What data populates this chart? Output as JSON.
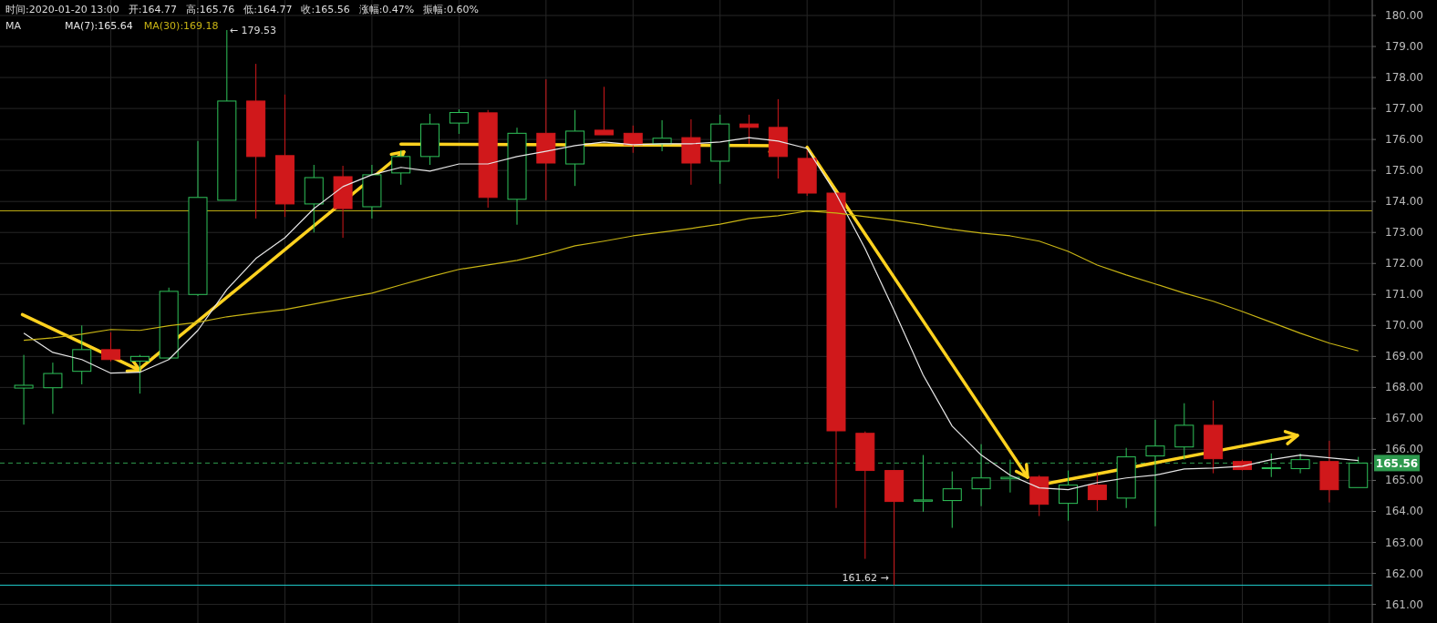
{
  "chart_data": {
    "type": "candlestick",
    "categories": [
      null,
      null,
      null,
      null,
      null,
      null,
      null,
      null,
      null,
      null,
      null,
      null,
      null,
      null,
      null,
      null,
      null,
      null,
      null,
      null,
      null,
      null,
      null,
      null,
      null,
      null,
      null,
      null,
      null,
      null,
      null,
      null,
      null,
      null,
      null,
      null,
      null,
      null,
      null,
      null,
      null,
      null,
      null,
      null,
      null,
      null,
      null
    ],
    "ohlc": [
      [
        167.98,
        169.05,
        166.8,
        168.07
      ],
      [
        167.99,
        168.8,
        167.15,
        168.45
      ],
      [
        168.52,
        170.0,
        168.1,
        169.22
      ],
      [
        169.22,
        169.78,
        168.84,
        168.9
      ],
      [
        168.85,
        169.05,
        167.8,
        169.0
      ],
      [
        168.95,
        171.22,
        168.9,
        171.1
      ],
      [
        171.0,
        175.95,
        170.95,
        174.13
      ],
      [
        174.04,
        179.53,
        174.04,
        177.24
      ],
      [
        177.24,
        178.44,
        173.45,
        175.45
      ],
      [
        175.48,
        177.45,
        173.5,
        173.92
      ],
      [
        173.92,
        175.18,
        173.0,
        174.77
      ],
      [
        174.8,
        175.15,
        172.83,
        173.77
      ],
      [
        173.83,
        175.18,
        173.45,
        174.86
      ],
      [
        174.92,
        175.65,
        174.54,
        175.45
      ],
      [
        175.45,
        176.83,
        175.18,
        176.5
      ],
      [
        176.53,
        176.97,
        176.18,
        176.87
      ],
      [
        176.86,
        176.95,
        173.8,
        174.13
      ],
      [
        174.07,
        176.38,
        173.25,
        176.2
      ],
      [
        176.2,
        177.94,
        174.04,
        175.24
      ],
      [
        175.21,
        176.95,
        174.5,
        176.27
      ],
      [
        176.3,
        177.7,
        176.15,
        176.15
      ],
      [
        176.2,
        176.45,
        175.57,
        175.83
      ],
      [
        175.86,
        176.62,
        175.62,
        176.04
      ],
      [
        176.06,
        176.65,
        174.54,
        175.24
      ],
      [
        175.3,
        176.8,
        174.57,
        176.5
      ],
      [
        176.5,
        176.8,
        175.86,
        176.39
      ],
      [
        176.39,
        177.3,
        174.74,
        175.45
      ],
      [
        175.39,
        175.65,
        174.18,
        174.27
      ],
      [
        174.27,
        174.27,
        164.11,
        166.6
      ],
      [
        166.52,
        166.58,
        162.47,
        165.32
      ],
      [
        165.32,
        165.32,
        161.62,
        164.32
      ],
      [
        164.33,
        165.82,
        163.99,
        164.37
      ],
      [
        164.35,
        165.29,
        163.47,
        164.73
      ],
      [
        164.73,
        166.17,
        164.17,
        165.08
      ],
      [
        165.05,
        165.67,
        164.61,
        165.1
      ],
      [
        165.11,
        165.17,
        163.85,
        164.23
      ],
      [
        164.26,
        165.32,
        163.7,
        164.85
      ],
      [
        164.85,
        165.23,
        164.02,
        164.38
      ],
      [
        164.43,
        166.05,
        164.11,
        165.76
      ],
      [
        165.79,
        166.96,
        163.52,
        166.11
      ],
      [
        166.08,
        167.49,
        165.67,
        166.78
      ],
      [
        166.78,
        167.58,
        165.23,
        165.7
      ],
      [
        165.61,
        165.67,
        165.32,
        165.35
      ],
      [
        165.38,
        165.87,
        165.11,
        165.41
      ],
      [
        165.38,
        165.87,
        165.23,
        165.67
      ],
      [
        165.61,
        166.28,
        164.29,
        164.7
      ],
      [
        164.77,
        165.76,
        164.77,
        165.56
      ]
    ],
    "colors": [
      "#2fc35a",
      "#2fc35a",
      "#2fc35a",
      "#d0181b",
      "#2fc35a",
      "#2fc35a",
      "#2fc35a",
      "#2fc35a",
      "#d0181b",
      "#d0181b",
      "#2fc35a",
      "#d0181b",
      "#2fc35a",
      "#2fc35a",
      "#2fc35a",
      "#2fc35a",
      "#d0181b",
      "#2fc35a",
      "#d0181b",
      "#2fc35a",
      "#d0181b",
      "#d0181b",
      "#2fc35a",
      "#d0181b",
      "#2fc35a",
      "#d0181b",
      "#d0181b",
      "#d0181b",
      "#d0181b",
      "#d0181b",
      "#d0181b",
      "#2fc35a",
      "#2fc35a",
      "#2fc35a",
      "#2fc35a",
      "#d0181b",
      "#2fc35a",
      "#d0181b",
      "#2fc35a",
      "#2fc35a",
      "#2fc35a",
      "#d0181b",
      "#d0181b",
      "#2fc35a",
      "#2fc35a",
      "#d0181b",
      "#2fc35a"
    ],
    "series": [
      {
        "type": "line",
        "name": "MA(7):165.64",
        "color": "#e6e6e6",
        "values": [
          169.75,
          169.13,
          168.9,
          168.46,
          168.49,
          168.9,
          169.84,
          171.16,
          172.16,
          172.83,
          173.77,
          174.48,
          174.86,
          175.1,
          174.98,
          175.21,
          175.21,
          175.45,
          175.62,
          175.8,
          175.92,
          175.83,
          175.86,
          175.86,
          175.92,
          176.06,
          175.95,
          175.71,
          174.24,
          172.48,
          170.48,
          168.4,
          166.75,
          165.82,
          165.17,
          164.76,
          164.7,
          164.93,
          165.08,
          165.17,
          165.37,
          165.4,
          165.46,
          165.67,
          165.82,
          165.73,
          165.64
        ]
      },
      {
        "type": "line",
        "name": "MA(30):169.18",
        "color": "#c8b414",
        "values": [
          169.52,
          169.6,
          169.72,
          169.87,
          169.84,
          169.99,
          170.1,
          170.28,
          170.4,
          170.51,
          170.69,
          170.87,
          171.04,
          171.31,
          171.57,
          171.81,
          171.95,
          172.1,
          172.31,
          172.57,
          172.72,
          172.89,
          173.01,
          173.13,
          173.27,
          173.45,
          173.54,
          173.69,
          173.63,
          173.51,
          173.39,
          173.25,
          173.1,
          172.98,
          172.89,
          172.72,
          172.39,
          171.95,
          171.63,
          171.34,
          171.04,
          170.78,
          170.45,
          170.1,
          169.75,
          169.43,
          169.18
        ]
      }
    ],
    "ylim": [
      160.4,
      180.5
    ],
    "yticks": [
      {
        "value": 161,
        "label": "161.00"
      },
      {
        "value": 162,
        "label": "162.00"
      },
      {
        "value": 163,
        "label": "163.00"
      },
      {
        "value": 164,
        "label": "164.00"
      },
      {
        "value": 165,
        "label": "165.00"
      },
      {
        "value": 166,
        "label": "166.00"
      },
      {
        "value": 167,
        "label": "167.00"
      },
      {
        "value": 168,
        "label": "168.00"
      },
      {
        "value": 169,
        "label": "169.00"
      },
      {
        "value": 170,
        "label": "170.00"
      },
      {
        "value": 171,
        "label": "171.00"
      },
      {
        "value": 172,
        "label": "172.00"
      },
      {
        "value": 173,
        "label": "173.00"
      },
      {
        "value": 174,
        "label": "174.00"
      },
      {
        "value": 175,
        "label": "175.00"
      },
      {
        "value": 176,
        "label": "176.00"
      },
      {
        "value": 177,
        "label": "177.00"
      },
      {
        "value": 178,
        "label": "178.00"
      },
      {
        "value": 179,
        "label": "179.00"
      },
      {
        "value": 180,
        "label": "180.00"
      }
    ],
    "grid": true,
    "legend": "top left",
    "ref_lines": [
      {
        "axis": "y",
        "value": 173.7,
        "color": "#c8b414"
      },
      {
        "axis": "y",
        "value": 161.62,
        "color": "#1fc8c8"
      },
      {
        "axis": "y",
        "value": 165.56,
        "label": "165.56",
        "color": "#2e9a4e",
        "line_style": "dashed"
      }
    ],
    "annotations": [
      "时间:2020-01-20 13:00",
      "开:164.77",
      "高:165.76",
      "低:164.77",
      "收:165.56",
      "涨幅:0.47%",
      "振幅:0.60%",
      "MA",
      "← 179.53",
      "161.62 →"
    ]
  }
}
